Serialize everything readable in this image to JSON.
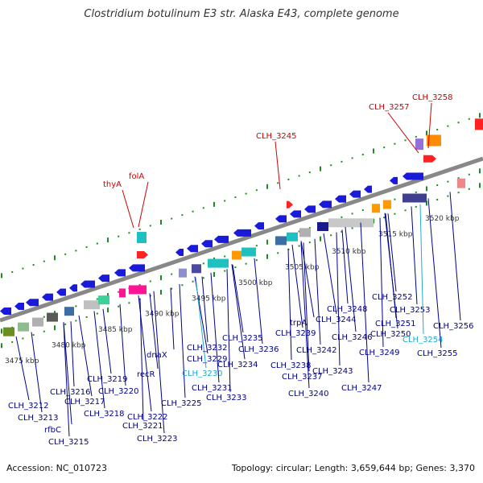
{
  "title": "Clostridium botulinum E3 str. Alaska E43, complete genome",
  "footer": {
    "accession": "Accession: NC_010723",
    "topology": "Topology: circular; Length: 3,659,644 bp; Genes: 3,370"
  },
  "colors": {
    "backbone": "#888888",
    "tick": "#1e8c1e",
    "forward_label": "#cc0000",
    "reverse_label": "#00008b",
    "highlight_label": "#22aacc",
    "gene_blue": "#1a1adb"
  },
  "kbp_labels": [
    "3475 kbp",
    "3480 kbp",
    "3485 kbp",
    "3490 kbp",
    "3495 kbp",
    "3500 kbp",
    "3505 kbp",
    "3510 kbp",
    "3515 kbp",
    "3520 kbp"
  ],
  "top_labels": [
    "thyA",
    "folA",
    "CLH_3245",
    "CLH_3257",
    "CLH_3258"
  ],
  "bottom_labels": [
    "CLH_3212",
    "CLH_3213",
    "rfbC",
    "CLH_3215",
    "CLH_3216",
    "CLH_3217",
    "CLH_3218",
    "CLH_3219",
    "CLH_3220",
    "CLH_3221",
    "CLH_3222",
    "CLH_3223",
    "recR",
    "CLH_3225",
    "dnaX",
    "CLH_3229",
    "CLH_3230",
    "CLH_3231",
    "CLH_3232",
    "CLH_3233",
    "CLH_3234",
    "CLH_3235",
    "CLH_3236",
    "CLH_3237",
    "CLH_3238",
    "trpA",
    "CLH_3239",
    "CLH_3240",
    "CLH_3242",
    "CLH_3243",
    "CLH_3244",
    "CLH_3246",
    "CLH_3247",
    "CLH_3248",
    "CLH_3249",
    "CLH_3250",
    "CLH_3251",
    "CLH_3252",
    "CLH_3253",
    "CLH_3254",
    "CLH_3255",
    "CLH_3256"
  ]
}
